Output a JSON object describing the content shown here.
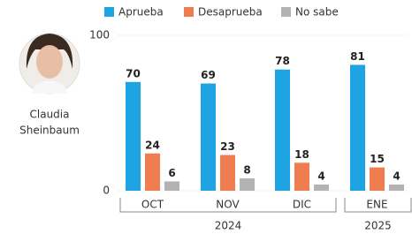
{
  "chart_data": {
    "type": "bar",
    "person": {
      "name_lines": [
        "Claudia",
        "Sheinbaum"
      ]
    },
    "categories": [
      "OCT",
      "NOV",
      "DIC",
      "ENE"
    ],
    "year_groups": [
      {
        "label": "2024",
        "count": 3
      },
      {
        "label": "2025",
        "count": 1
      }
    ],
    "series": [
      {
        "name": "Aprueba",
        "color": "#1ea4e2",
        "values": [
          70,
          69,
          78,
          81
        ]
      },
      {
        "name": "Desaprueba",
        "color": "#f07d4f",
        "values": [
          24,
          23,
          18,
          15
        ]
      },
      {
        "name": "No sabe",
        "color": "#b3b3b3",
        "values": [
          6,
          8,
          4,
          4
        ]
      }
    ],
    "ylim": [
      0,
      100
    ],
    "yticks": [
      0,
      100
    ]
  }
}
